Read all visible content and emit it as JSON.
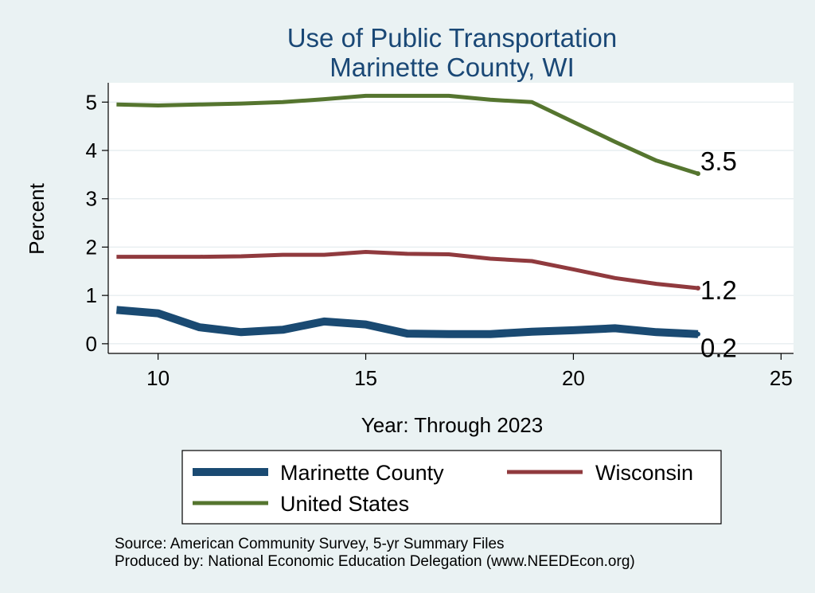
{
  "chart_data": {
    "type": "line",
    "title": [
      "Use of Public Transportation",
      "Marinette County, WI"
    ],
    "xlabel": "Year: Through 2023",
    "ylabel": "Percent",
    "xlim": [
      8.8,
      25.3
    ],
    "ylim": [
      -0.2,
      5.4
    ],
    "xticks": [
      10,
      15,
      20,
      25
    ],
    "yticks": [
      0,
      1,
      2,
      3,
      4,
      5
    ],
    "grid": true,
    "legend_position": "bottom",
    "x": [
      9,
      10,
      11,
      12,
      13,
      14,
      15,
      16,
      17,
      18,
      19,
      20,
      21,
      22,
      23
    ],
    "series": [
      {
        "name": "Marinette County",
        "color": "#1a4a72",
        "end_label": "0.2",
        "values": [
          0.7,
          0.63,
          0.34,
          0.24,
          0.29,
          0.46,
          0.4,
          0.21,
          0.2,
          0.2,
          0.25,
          0.28,
          0.32,
          0.24,
          0.2
        ]
      },
      {
        "name": "Wisconsin",
        "color": "#903a3e",
        "end_label": "1.2",
        "values": [
          1.8,
          1.8,
          1.8,
          1.81,
          1.84,
          1.84,
          1.9,
          1.86,
          1.85,
          1.76,
          1.71,
          1.54,
          1.36,
          1.24,
          1.15
        ]
      },
      {
        "name": "United States",
        "color": "#55752f",
        "end_label": "3.5",
        "values": [
          4.95,
          4.93,
          4.95,
          4.97,
          5.0,
          5.06,
          5.13,
          5.13,
          5.13,
          5.05,
          5.0,
          4.59,
          4.18,
          3.79,
          3.52
        ]
      }
    ],
    "legend_order": [
      "Marinette County",
      "Wisconsin",
      "United States"
    ],
    "notes": [
      "Source: American Community Survey, 5-yr Summary Files",
      "Produced by: National Economic Education Delegation (www.NEEDEcon.org)"
    ]
  }
}
